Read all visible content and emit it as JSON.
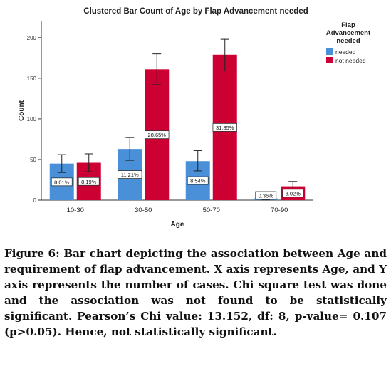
{
  "chart_data": {
    "type": "bar",
    "title": "Clustered Bar Count of Age by Flap Advancement needed",
    "xlabel": "Age",
    "ylabel": "Count",
    "ylim": [
      0,
      220
    ],
    "yticks": [
      0,
      50,
      100,
      150,
      200
    ],
    "categories": [
      "10-30",
      "30-50",
      "50-70",
      "70-90"
    ],
    "legend": {
      "title": "Flap Advancement needed",
      "placement": "top-right"
    },
    "grid": false,
    "series": [
      {
        "name": "needed",
        "color": "#4a90d9",
        "values": [
          45,
          63,
          48,
          2
        ],
        "error_low": [
          34,
          49,
          36,
          0
        ],
        "error_high": [
          56,
          77,
          61,
          5
        ],
        "labels": [
          "8.01%",
          "11.21%",
          "8.54%",
          "0.36%"
        ]
      },
      {
        "name": "not needed",
        "color": "#cc0033",
        "values": [
          46,
          161,
          179,
          17
        ],
        "error_low": [
          35,
          142,
          159,
          10
        ],
        "error_high": [
          57,
          180,
          198,
          23
        ],
        "labels": [
          "8.19%",
          "28.65%",
          "31.85%",
          "3.02%"
        ]
      }
    ]
  },
  "caption": "Figure 6: Bar chart depicting the association between Age and requirement of flap advancement. X axis represents Age, and Y axis represents the number of cases. Chi square test was done and the association was not found to be statistically significant. Pearson’s Chi value: 13.152, df: 8, p-value= 0.107 (p>0.05). Hence, not statistically significant."
}
